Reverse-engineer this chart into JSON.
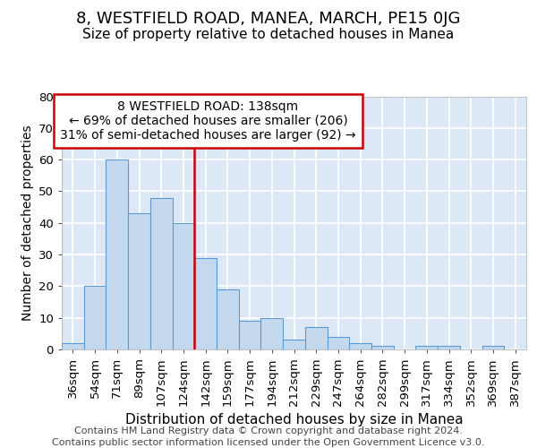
{
  "title": "8, WESTFIELD ROAD, MANEA, MARCH, PE15 0JG",
  "subtitle": "Size of property relative to detached houses in Manea",
  "xlabel": "Distribution of detached houses by size in Manea",
  "ylabel": "Number of detached properties",
  "categories": [
    "36sqm",
    "54sqm",
    "71sqm",
    "89sqm",
    "107sqm",
    "124sqm",
    "142sqm",
    "159sqm",
    "177sqm",
    "194sqm",
    "212sqm",
    "229sqm",
    "247sqm",
    "264sqm",
    "282sqm",
    "299sqm",
    "317sqm",
    "334sqm",
    "352sqm",
    "369sqm",
    "387sqm"
  ],
  "values": [
    2,
    20,
    60,
    43,
    48,
    40,
    29,
    19,
    9,
    10,
    3,
    7,
    4,
    2,
    1,
    0,
    1,
    1,
    0,
    1,
    0
  ],
  "bar_color": "#c5d9ee",
  "bar_edge_color": "#5b9bd5",
  "background_color": "#dce8f5",
  "grid_color": "#ffffff",
  "annotation_box_text": "8 WESTFIELD ROAD: 138sqm\n← 69% of detached houses are smaller (206)\n31% of semi-detached houses are larger (92) →",
  "annotation_box_color": "white",
  "annotation_box_edge_color": "#cc0000",
  "annotation_line_color": "#cc0000",
  "ylim": [
    0,
    80
  ],
  "yticks": [
    0,
    10,
    20,
    30,
    40,
    50,
    60,
    70,
    80
  ],
  "footer_line1": "Contains HM Land Registry data © Crown copyright and database right 2024.",
  "footer_line2": "Contains public sector information licensed under the Open Government Licence v3.0.",
  "title_fontsize": 13,
  "subtitle_fontsize": 11,
  "xlabel_fontsize": 11,
  "ylabel_fontsize": 10,
  "tick_fontsize": 9.5,
  "ann_fontsize": 10,
  "footer_fontsize": 8
}
